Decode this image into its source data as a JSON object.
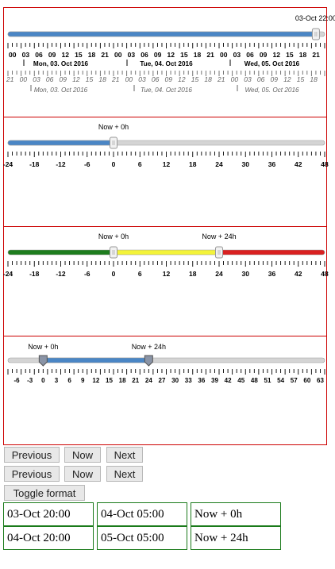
{
  "sliders": [
    {
      "handles": [
        {
          "label": "03-Oct 22:00",
          "value": 2.9167
        }
      ],
      "range": {
        "min": 0,
        "max": 3
      },
      "hour_ticks": [
        "00",
        "03",
        "06",
        "09",
        "12",
        "15",
        "18",
        "21",
        "00",
        "03",
        "06",
        "09",
        "12",
        "15",
        "18",
        "21",
        "00",
        "03",
        "06",
        "09",
        "12",
        "15",
        "18",
        "21"
      ],
      "day_ticks": [
        "Mon, 03. Oct 2016",
        "Tue, 04. Oct 2016",
        "Wed, 05. Oct 2016"
      ],
      "hour_ticks_secondary": [
        "21",
        "00",
        "03",
        "06",
        "09",
        "12",
        "15",
        "18",
        "21",
        "00",
        "03",
        "06",
        "09",
        "12",
        "15",
        "18",
        "21",
        "00",
        "03",
        "06",
        "09",
        "12",
        "15",
        "18"
      ],
      "day_ticks_secondary": [
        "Mon, 03. Oct 2016",
        "Tue, 04. Oct 2016",
        "Wed, 05. Oct 2016"
      ],
      "colors": {
        "fill": "#4a86c5",
        "track": "#d4d4d4"
      }
    },
    {
      "handles": [
        {
          "label": "Now + 0h",
          "value": 0
        }
      ],
      "range": {
        "min": -24,
        "max": 48
      },
      "scale_labels": [
        "-24",
        "-18",
        "-12",
        "-6",
        "0",
        "6",
        "12",
        "18",
        "24",
        "30",
        "36",
        "42",
        "48"
      ],
      "colors": {
        "fill": "#4a86c5",
        "track": "#d4d4d4"
      }
    },
    {
      "handles": [
        {
          "label": "Now + 0h",
          "value": 0
        },
        {
          "label": "Now + 24h",
          "value": 24
        }
      ],
      "range": {
        "min": -24,
        "max": 48
      },
      "scale_labels": [
        "-24",
        "-18",
        "-12",
        "-6",
        "0",
        "6",
        "12",
        "18",
        "24",
        "30",
        "36",
        "42",
        "48"
      ],
      "colors": {
        "low": "#1e7d1e",
        "mid": "#f3f33a",
        "high": "#d92020"
      }
    },
    {
      "handles": [
        {
          "label": "Now + 0h",
          "value": 0
        },
        {
          "label": "Now + 24h",
          "value": 24
        }
      ],
      "range": {
        "min": -8,
        "max": 64
      },
      "scale_labels": [
        "-6",
        "-3",
        "0",
        "3",
        "6",
        "9",
        "12",
        "15",
        "18",
        "21",
        "24",
        "27",
        "30",
        "33",
        "36",
        "39",
        "42",
        "45",
        "48",
        "51",
        "54",
        "57",
        "60",
        "63"
      ],
      "colors": {
        "fill": "#4a86c5",
        "track": "#d4d4d4"
      }
    }
  ],
  "buttons": {
    "row1": {
      "previous": "Previous",
      "now": "Now",
      "next": "Next"
    },
    "row2": {
      "previous": "Previous",
      "now": "Now",
      "next": "Next"
    },
    "toggle": "Toggle format"
  },
  "table": [
    [
      "03-Oct 20:00",
      "04-Oct 05:00",
      "Now + 0h"
    ],
    [
      "04-Oct 20:00",
      "05-Oct 05:00",
      "Now + 24h"
    ]
  ]
}
